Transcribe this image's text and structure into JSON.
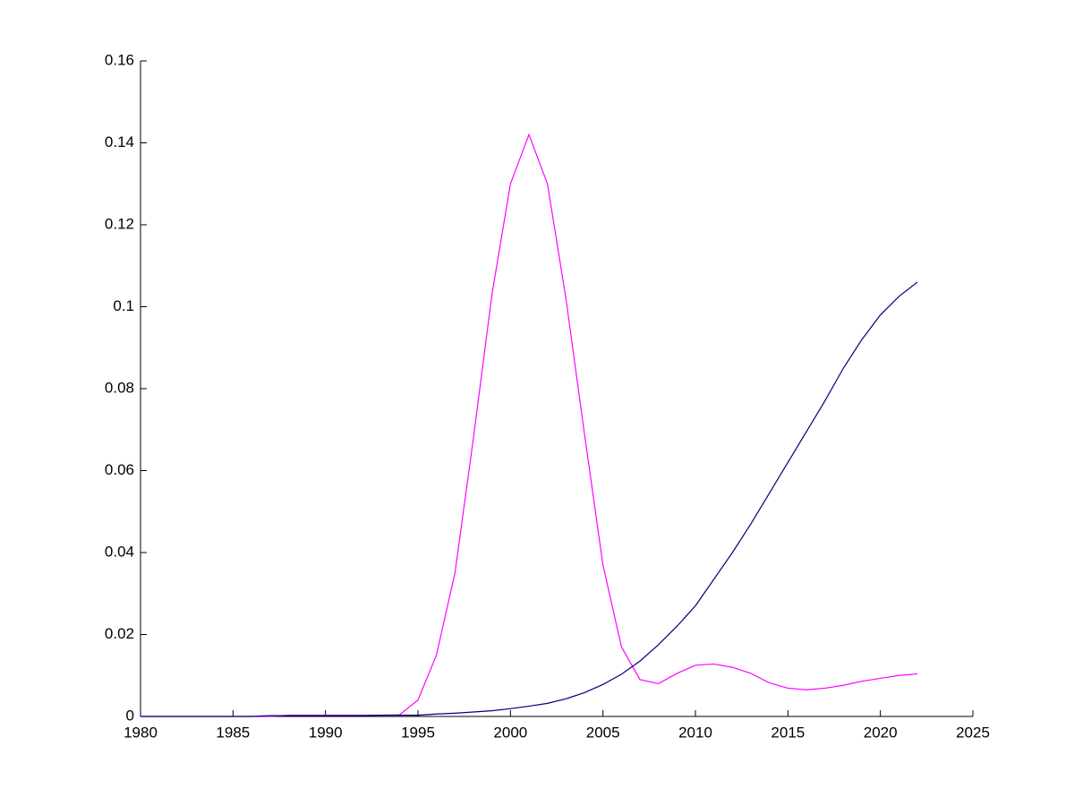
{
  "chart_data": {
    "type": "line",
    "x": [
      1980,
      1981,
      1982,
      1983,
      1984,
      1985,
      1986,
      1987,
      1988,
      1989,
      1990,
      1991,
      1992,
      1993,
      1994,
      1995,
      1996,
      1997,
      1998,
      1999,
      2000,
      2001,
      2002,
      2003,
      2004,
      2005,
      2006,
      2007,
      2008,
      2009,
      2010,
      2011,
      2012,
      2013,
      2014,
      2015,
      2016,
      2017,
      2018,
      2019,
      2020,
      2021,
      2022
    ],
    "series": [
      {
        "color": "#ff00ff",
        "values": [
          0,
          0,
          0,
          0,
          0,
          0,
          0,
          0,
          0.0003,
          0.0003,
          0.0003,
          0.0003,
          0.0003,
          0.0003,
          0.0004,
          0.004,
          0.015,
          0.035,
          0.068,
          0.103,
          0.13,
          0.142,
          0.13,
          0.102,
          0.069,
          0.037,
          0.017,
          0.009,
          0.008,
          0.0105,
          0.0125,
          0.0128,
          0.012,
          0.0105,
          0.0082,
          0.0069,
          0.0065,
          0.0069,
          0.0076,
          0.0086,
          0.0093,
          0.01,
          0.0104
        ]
      },
      {
        "color": "#00007f",
        "values": [
          0,
          0,
          0,
          0,
          0,
          0,
          0,
          0.0002,
          0.0002,
          0.0002,
          0.0002,
          0.0002,
          0.0002,
          0.0003,
          0.0003,
          0.0003,
          0.0006,
          0.0008,
          0.0011,
          0.0014,
          0.0019,
          0.0025,
          0.0032,
          0.0043,
          0.0058,
          0.0078,
          0.0103,
          0.0135,
          0.0175,
          0.022,
          0.027,
          0.0335,
          0.04,
          0.047,
          0.0545,
          0.062,
          0.0695,
          0.077,
          0.085,
          0.092,
          0.098,
          0.1025,
          0.106
        ]
      }
    ],
    "xlim": [
      1980,
      2025
    ],
    "xticks": [
      1980,
      1985,
      1990,
      1995,
      2000,
      2005,
      2010,
      2015,
      2020,
      2025
    ],
    "ylim": [
      0,
      0.16
    ],
    "yticks": [
      0,
      0.02,
      0.04,
      0.06,
      0.08,
      0.1,
      0.12,
      0.14,
      0.16
    ]
  }
}
